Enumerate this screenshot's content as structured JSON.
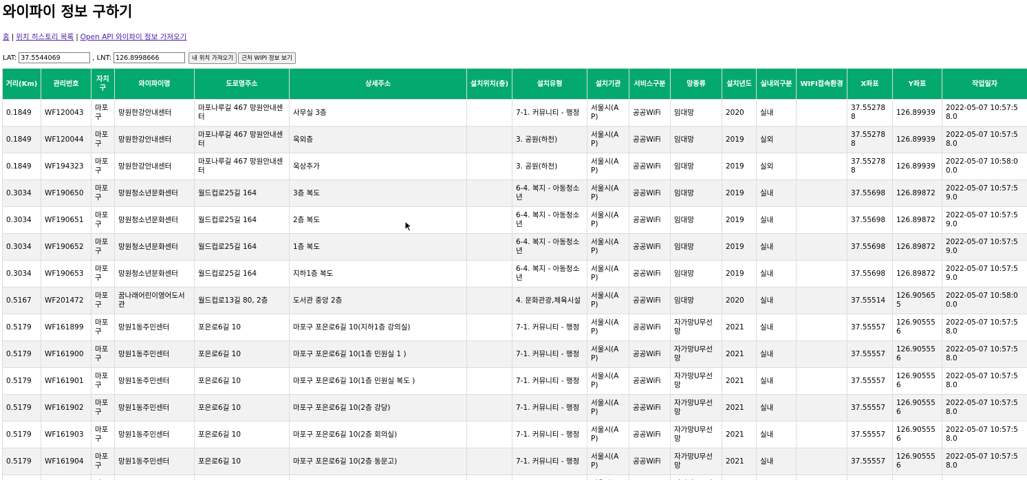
{
  "page": {
    "title": "와이파이 정보 구하기"
  },
  "nav": {
    "home": "홈",
    "history": "위치 히스토리 목록",
    "openapi": "Open API 와이파이 정보 가져오기",
    "separator": "|"
  },
  "coords": {
    "lat_label": "LAT:",
    "lat_value": "37.5544069",
    "lnt_label": ", LNT:",
    "lnt_value": "126.8998666",
    "my_location_button": "내 위치 가져오기",
    "nearby_button": "근처 WIPI 정보 보기"
  },
  "table": {
    "headers": [
      "거리(Km)",
      "관리번호",
      "자치구",
      "와이파이명",
      "도로명주소",
      "상세주소",
      "설치위치(층)",
      "설치유형",
      "설치기관",
      "서비스구분",
      "망종류",
      "설치년도",
      "실내외구분",
      "WIFI접속환경",
      "X좌표",
      "Y좌표",
      "작업일자"
    ],
    "rows": [
      [
        "0.1849",
        "WF120043",
        "마포구",
        "망원한강안내센터",
        "마포나루길 467 망원안내센터",
        "사무실 3층",
        "",
        "7-1. 커뮤니티 - 행정",
        "서울시(AP)",
        "공공WiFi",
        "임대망",
        "2020",
        "실내",
        "",
        "37.552788",
        "126.89939",
        "2022-05-07 10:57:58.0"
      ],
      [
        "0.1849",
        "WF120044",
        "마포구",
        "망원한강안내센터",
        "마포나루길 467 망원안내센터",
        "옥외층",
        "",
        "3. 공원(하천)",
        "서울시(AP)",
        "공공WiFi",
        "임대망",
        "2019",
        "실외",
        "",
        "37.552788",
        "126.89939",
        "2022-05-07 10:57:58.0"
      ],
      [
        "0.1849",
        "WF194323",
        "마포구",
        "망원한강안내센터",
        "마포나루길 467 망원안내센터",
        "옥상추가",
        "",
        "3. 공원(하천)",
        "서울시(AP)",
        "공공WiFi",
        "임대망",
        "2019",
        "실외",
        "",
        "37.552788",
        "126.89939",
        "2022-05-07 10:58:00.0"
      ],
      [
        "0.3034",
        "WF190650",
        "마포구",
        "망원청소년문화센터",
        "월드컵로25길 164",
        "3층 복도",
        "",
        "6-4. 복지 - 아동청소년",
        "서울시(AP)",
        "공공WiFi",
        "임대망",
        "2019",
        "실내",
        "",
        "37.55698",
        "126.89872",
        "2022-05-07 10:57:59.0"
      ],
      [
        "0.3034",
        "WF190651",
        "마포구",
        "망원청소년문화센터",
        "월드컵로25길 164",
        "2층 복도",
        "",
        "6-4. 복지 - 아동청소년",
        "서울시(AP)",
        "공공WiFi",
        "임대망",
        "2019",
        "실내",
        "",
        "37.55698",
        "126.89872",
        "2022-05-07 10:57:59.0"
      ],
      [
        "0.3034",
        "WF190652",
        "마포구",
        "망원청소년문화센터",
        "월드컵로25길 164",
        "1층 복도",
        "",
        "6-4. 복지 - 아동청소년",
        "서울시(AP)",
        "공공WiFi",
        "임대망",
        "2019",
        "실내",
        "",
        "37.55698",
        "126.89872",
        "2022-05-07 10:57:59.0"
      ],
      [
        "0.3034",
        "WF190653",
        "마포구",
        "망원청소년문화센터",
        "월드컵로25길 164",
        "지하1층 복도",
        "",
        "6-4. 복지 - 아동청소년",
        "서울시(AP)",
        "공공WiFi",
        "임대망",
        "2019",
        "실내",
        "",
        "37.55698",
        "126.89872",
        "2022-05-07 10:57:59.0"
      ],
      [
        "0.5167",
        "WF201472",
        "마포구",
        "꿈나래어린이영어도서관",
        "월드컵로13길 80, 2층",
        "도서관 중앙 2층",
        "",
        "4. 문화관광,체육시설",
        "서울시(AP)",
        "공공WiFi",
        "임대망",
        "2020",
        "실내",
        "",
        "37.55514",
        "126.905655",
        "2022-05-07 10:58:00.0"
      ],
      [
        "0.5179",
        "WF161899",
        "마포구",
        "망원1동주민센터",
        "포은로6길 10",
        "마포구 포은로6길 10(지하1층 강의실)",
        "",
        "7-1. 커뮤니티 - 행정",
        "서울시(AP)",
        "공공WiFi",
        "자가망U무선망",
        "2021",
        "실내",
        "",
        "37.55557",
        "126.905556",
        "2022-05-07 10:57:58.0"
      ],
      [
        "0.5179",
        "WF161900",
        "마포구",
        "망원1동주민센터",
        "포은로6길 10",
        "마포구 포은로6길 10(1층 민원실 1 )",
        "",
        "7-1. 커뮤니티 - 행정",
        "서울시(AP)",
        "공공WiFi",
        "자가망U무선망",
        "2021",
        "실내",
        "",
        "37.55557",
        "126.905556",
        "2022-05-07 10:57:58.0"
      ],
      [
        "0.5179",
        "WF161901",
        "마포구",
        "망원1동주민센터",
        "포은로6길 10",
        "마포구 포은로6길 10(1층 민원실 복도 )",
        "",
        "7-1. 커뮤니티 - 행정",
        "서울시(AP)",
        "공공WiFi",
        "자가망U무선망",
        "2021",
        "실내",
        "",
        "37.55557",
        "126.905556",
        "2022-05-07 10:57:58.0"
      ],
      [
        "0.5179",
        "WF161902",
        "마포구",
        "망원1동주민센터",
        "포은로6길 10",
        "마포구 포은로6길 10(2층 강당)",
        "",
        "7-1. 커뮤니티 - 행정",
        "서울시(AP)",
        "공공WiFi",
        "자가망U무선망",
        "2021",
        "실내",
        "",
        "37.55557",
        "126.905556",
        "2022-05-07 10:57:58.0"
      ],
      [
        "0.5179",
        "WF161903",
        "마포구",
        "망원1동주민센터",
        "포은로6길 10",
        "마포구 포은로6길 10(2층 회의실)",
        "",
        "7-1. 커뮤니티 - 행정",
        "서울시(AP)",
        "공공WiFi",
        "자가망U무선망",
        "2021",
        "실내",
        "",
        "37.55557",
        "126.905556",
        "2022-05-07 10:57:58.0"
      ],
      [
        "0.5179",
        "WF161904",
        "마포구",
        "망원1동주민센터",
        "포은로6길 10",
        "마포구 포은로6길 10(2층 동문고)",
        "",
        "7-1. 커뮤니티 - 행정",
        "서울시(AP)",
        "공공WiFi",
        "자가망U무선망",
        "2021",
        "실내",
        "",
        "37.55557",
        "126.905556",
        "2022-05-07 10:57:58.0"
      ],
      [
        "",
        "",
        "마포구",
        "",
        "",
        "",
        "",
        "",
        "서울시(AP)",
        "",
        "자가망U무선망",
        "",
        "",
        "",
        "",
        "",
        ""
      ]
    ]
  },
  "icons": {
    "cursor": "mouse-pointer-icon"
  }
}
